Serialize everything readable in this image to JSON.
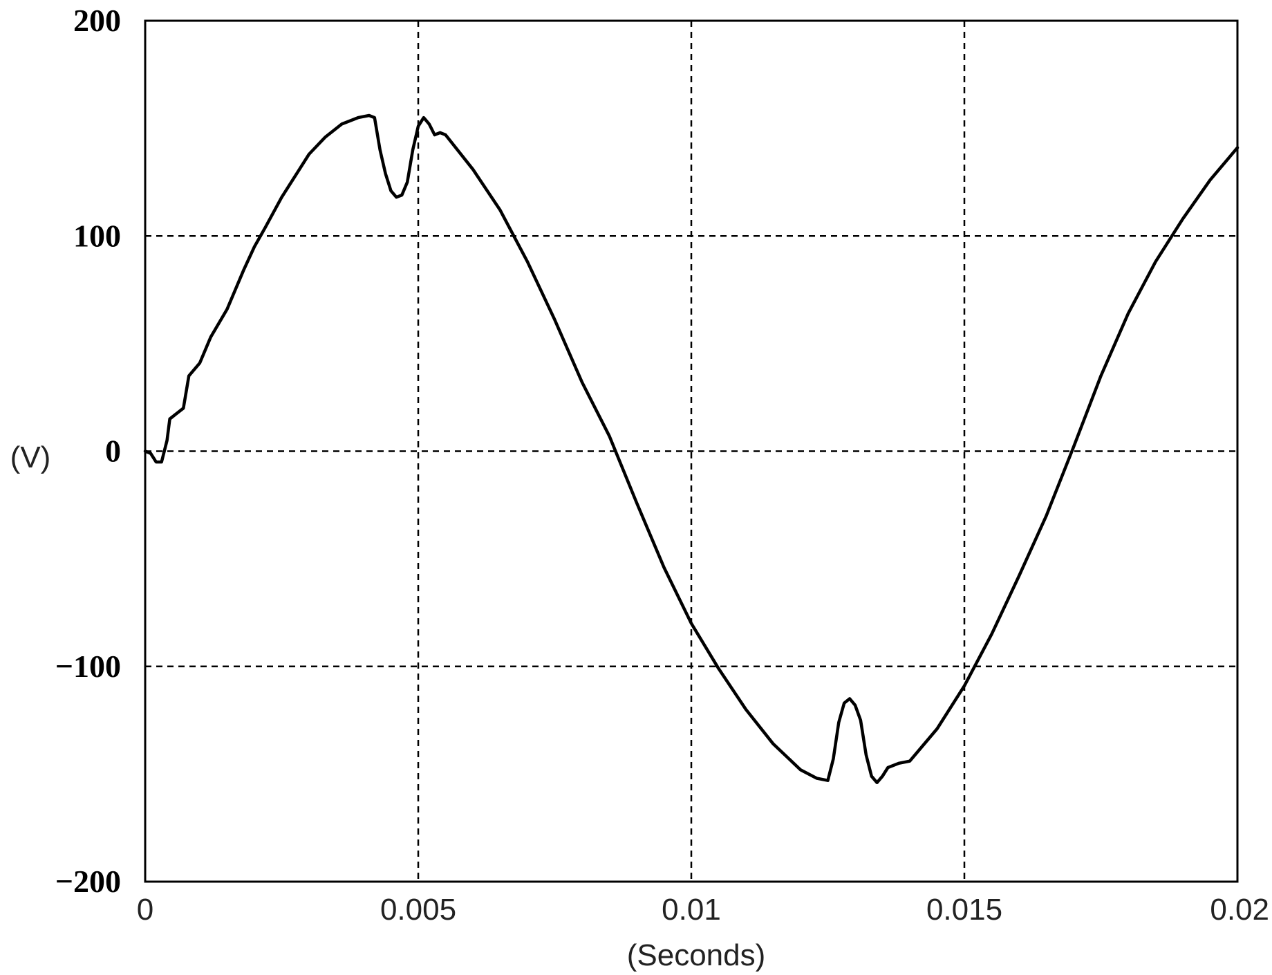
{
  "chart_data": {
    "type": "line",
    "title": "",
    "xlabel": "(Seconds)",
    "ylabel": "(V)",
    "xlim": [
      0,
      0.02
    ],
    "ylim": [
      -200,
      200
    ],
    "grid": true,
    "x_ticks": [
      {
        "value": 0,
        "label": "0"
      },
      {
        "value": 0.005,
        "label": "0.005"
      },
      {
        "value": 0.01,
        "label": "0.01"
      },
      {
        "value": 0.015,
        "label": "0.015"
      },
      {
        "value": 0.02,
        "label": "0.02"
      }
    ],
    "y_ticks": [
      {
        "value": 200,
        "label": "200"
      },
      {
        "value": 100,
        "label": "100"
      },
      {
        "value": 0,
        "label": "0"
      },
      {
        "value": -100,
        "label": "−100"
      },
      {
        "value": -200,
        "label": "−200"
      }
    ],
    "series": [
      {
        "color": "#000000",
        "points": [
          [
            0,
            0
          ],
          [
            0.0001,
            -1
          ],
          [
            0.0002,
            -5
          ],
          [
            0.0003,
            -5
          ],
          [
            0.0004,
            5
          ],
          [
            0.00045,
            15
          ],
          [
            0.0006,
            18
          ],
          [
            0.0007,
            20
          ],
          [
            0.0008,
            35
          ],
          [
            0.001,
            41
          ],
          [
            0.0012,
            53
          ],
          [
            0.0015,
            66
          ],
          [
            0.0018,
            84
          ],
          [
            0.002,
            95
          ],
          [
            0.0022,
            104
          ],
          [
            0.0025,
            118
          ],
          [
            0.0028,
            130
          ],
          [
            0.003,
            138
          ],
          [
            0.0033,
            146
          ],
          [
            0.0036,
            152
          ],
          [
            0.0039,
            155
          ],
          [
            0.0041,
            156
          ],
          [
            0.0042,
            155
          ],
          [
            0.0043,
            140
          ],
          [
            0.0044,
            129
          ],
          [
            0.0045,
            121
          ],
          [
            0.0046,
            118
          ],
          [
            0.0047,
            119
          ],
          [
            0.0048,
            125
          ],
          [
            0.0049,
            140
          ],
          [
            0.005,
            151
          ],
          [
            0.0051,
            155
          ],
          [
            0.0052,
            152
          ],
          [
            0.0053,
            147
          ],
          [
            0.0054,
            148
          ],
          [
            0.0055,
            147
          ],
          [
            0.006,
            131
          ],
          [
            0.0065,
            112
          ],
          [
            0.007,
            88
          ],
          [
            0.0075,
            61
          ],
          [
            0.008,
            32
          ],
          [
            0.0085,
            7
          ],
          [
            0.009,
            -24
          ],
          [
            0.0095,
            -54
          ],
          [
            0.01,
            -80
          ],
          [
            0.0105,
            -101
          ],
          [
            0.011,
            -120
          ],
          [
            0.0115,
            -136
          ],
          [
            0.012,
            -148
          ],
          [
            0.0123,
            -152
          ],
          [
            0.0125,
            -153
          ],
          [
            0.0126,
            -143
          ],
          [
            0.0127,
            -126
          ],
          [
            0.0128,
            -117
          ],
          [
            0.0129,
            -115
          ],
          [
            0.013,
            -118
          ],
          [
            0.0131,
            -125
          ],
          [
            0.0132,
            -141
          ],
          [
            0.0133,
            -151
          ],
          [
            0.0134,
            -154
          ],
          [
            0.0135,
            -151
          ],
          [
            0.0136,
            -147
          ],
          [
            0.0138,
            -145
          ],
          [
            0.014,
            -144
          ],
          [
            0.0142,
            -138
          ],
          [
            0.0145,
            -129
          ],
          [
            0.015,
            -109
          ],
          [
            0.0155,
            -85
          ],
          [
            0.016,
            -58
          ],
          [
            0.0165,
            -30
          ],
          [
            0.017,
            2
          ],
          [
            0.0175,
            35
          ],
          [
            0.018,
            64
          ],
          [
            0.0185,
            88
          ],
          [
            0.019,
            108
          ],
          [
            0.0195,
            126
          ],
          [
            0.02,
            141
          ]
        ]
      }
    ]
  }
}
